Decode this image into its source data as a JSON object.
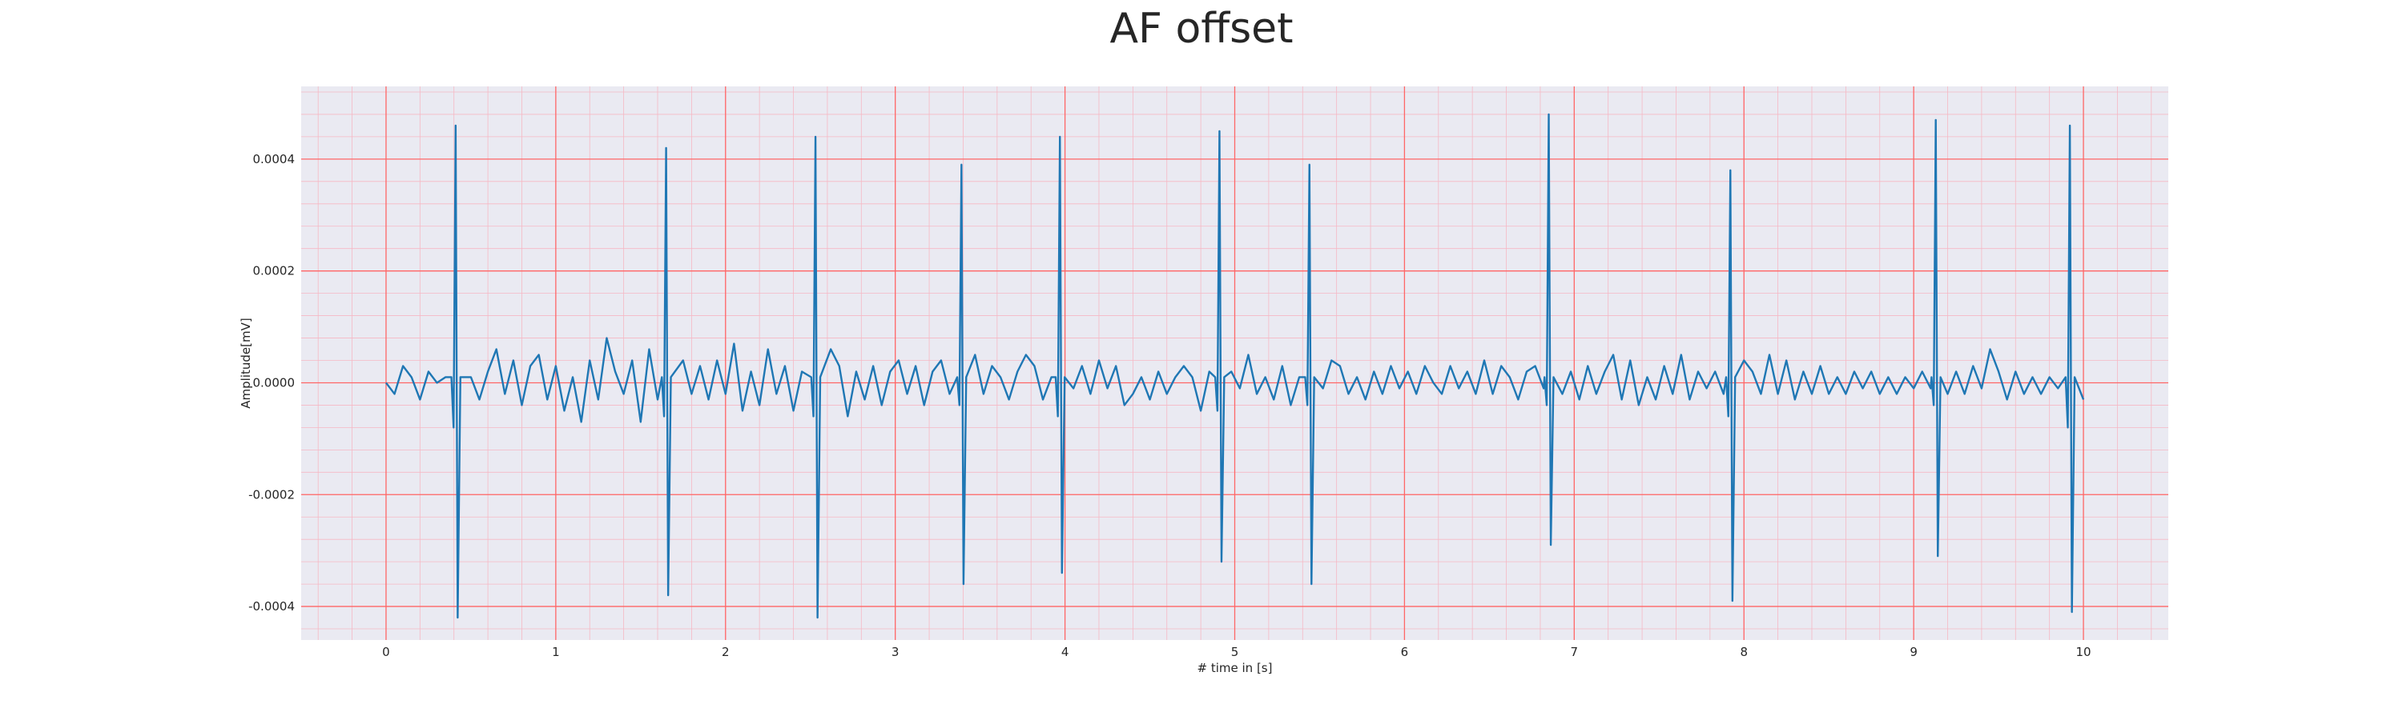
{
  "chart_data": {
    "type": "line",
    "title": "AF offset",
    "xlabel": "# time in [s]",
    "ylabel": "Amplitude[mV]",
    "xlim": [
      -0.5,
      10.5
    ],
    "ylim": [
      -0.00046,
      0.00053
    ],
    "x_ticks": [
      0,
      1,
      2,
      3,
      4,
      5,
      6,
      7,
      8,
      9,
      10
    ],
    "x_tick_labels": [
      "0",
      "1",
      "2",
      "3",
      "4",
      "5",
      "6",
      "7",
      "8",
      "9",
      "10"
    ],
    "y_ticks": [
      -0.0004,
      -0.0002,
      0.0,
      0.0002,
      0.0004
    ],
    "y_tick_labels": [
      "-0.0004",
      "-0.0002",
      "0.0000",
      "0.0002",
      "0.0004"
    ],
    "grid": "major red, minor pink",
    "colors": {
      "background": "#eaeaf2",
      "major_grid": "#ff6666",
      "minor_grid": "#f6b8c4",
      "line": "#1f77b4"
    },
    "series": [
      {
        "qrs_complexes": [
          {
            "t": 0.41,
            "peak": 0.00046,
            "trough": -0.00042,
            "q": -8e-05
          },
          {
            "t": 1.65,
            "peak": 0.00042,
            "trough": -0.00038,
            "q": -6e-05
          },
          {
            "t": 2.53,
            "peak": 0.00044,
            "trough": -0.00042,
            "q": -6e-05
          },
          {
            "t": 3.39,
            "peak": 0.00039,
            "trough": -0.00036,
            "q": -4e-05
          },
          {
            "t": 3.97,
            "peak": 0.00044,
            "trough": -0.00034,
            "q": -6e-05
          },
          {
            "t": 4.91,
            "peak": 0.00045,
            "trough": -0.00032,
            "q": -5e-05
          },
          {
            "t": 5.44,
            "peak": 0.00039,
            "trough": -0.00036,
            "q": -4e-05
          },
          {
            "t": 6.85,
            "peak": 0.00048,
            "trough": -0.00029,
            "q": -4e-05
          },
          {
            "t": 7.92,
            "peak": 0.00038,
            "trough": -0.00039,
            "q": -6e-05
          },
          {
            "t": 9.13,
            "peak": 0.00047,
            "trough": -0.00031,
            "q": -4e-05
          },
          {
            "t": 9.92,
            "peak": 0.00046,
            "trough": -0.00041,
            "q": -8e-05
          }
        ],
        "baseline_fibrillation": [
          [
            0.0,
            0.0
          ],
          [
            0.05,
            -2e-05
          ],
          [
            0.1,
            3e-05
          ],
          [
            0.15,
            1e-05
          ],
          [
            0.2,
            -3e-05
          ],
          [
            0.25,
            2e-05
          ],
          [
            0.3,
            0.0
          ],
          [
            0.35,
            1e-05
          ],
          [
            0.5,
            1e-05
          ],
          [
            0.55,
            -3e-05
          ],
          [
            0.6,
            2e-05
          ],
          [
            0.65,
            6e-05
          ],
          [
            0.7,
            -2e-05
          ],
          [
            0.75,
            4e-05
          ],
          [
            0.8,
            -4e-05
          ],
          [
            0.85,
            3e-05
          ],
          [
            0.9,
            5e-05
          ],
          [
            0.95,
            -3e-05
          ],
          [
            1.0,
            3e-05
          ],
          [
            1.05,
            -5e-05
          ],
          [
            1.1,
            1e-05
          ],
          [
            1.15,
            -7e-05
          ],
          [
            1.2,
            4e-05
          ],
          [
            1.25,
            -3e-05
          ],
          [
            1.3,
            8e-05
          ],
          [
            1.35,
            2e-05
          ],
          [
            1.4,
            -2e-05
          ],
          [
            1.45,
            4e-05
          ],
          [
            1.5,
            -7e-05
          ],
          [
            1.55,
            6e-05
          ],
          [
            1.6,
            -3e-05
          ],
          [
            1.75,
            4e-05
          ],
          [
            1.8,
            -2e-05
          ],
          [
            1.85,
            3e-05
          ],
          [
            1.9,
            -3e-05
          ],
          [
            1.95,
            4e-05
          ],
          [
            2.0,
            -2e-05
          ],
          [
            2.05,
            7e-05
          ],
          [
            2.1,
            -5e-05
          ],
          [
            2.15,
            2e-05
          ],
          [
            2.2,
            -4e-05
          ],
          [
            2.25,
            6e-05
          ],
          [
            2.3,
            -2e-05
          ],
          [
            2.35,
            3e-05
          ],
          [
            2.4,
            -5e-05
          ],
          [
            2.45,
            2e-05
          ],
          [
            2.62,
            6e-05
          ],
          [
            2.67,
            3e-05
          ],
          [
            2.72,
            -6e-05
          ],
          [
            2.77,
            2e-05
          ],
          [
            2.82,
            -3e-05
          ],
          [
            2.87,
            3e-05
          ],
          [
            2.92,
            -4e-05
          ],
          [
            2.97,
            2e-05
          ],
          [
            3.02,
            4e-05
          ],
          [
            3.07,
            -2e-05
          ],
          [
            3.12,
            3e-05
          ],
          [
            3.17,
            -4e-05
          ],
          [
            3.22,
            2e-05
          ],
          [
            3.27,
            4e-05
          ],
          [
            3.32,
            -2e-05
          ],
          [
            3.47,
            5e-05
          ],
          [
            3.52,
            -2e-05
          ],
          [
            3.57,
            3e-05
          ],
          [
            3.62,
            1e-05
          ],
          [
            3.67,
            -3e-05
          ],
          [
            3.72,
            2e-05
          ],
          [
            3.77,
            5e-05
          ],
          [
            3.82,
            3e-05
          ],
          [
            3.87,
            -3e-05
          ],
          [
            3.92,
            1e-05
          ],
          [
            4.05,
            -1e-05
          ],
          [
            4.1,
            3e-05
          ],
          [
            4.15,
            -2e-05
          ],
          [
            4.2,
            4e-05
          ],
          [
            4.25,
            -1e-05
          ],
          [
            4.3,
            3e-05
          ],
          [
            4.35,
            -4e-05
          ],
          [
            4.4,
            -2e-05
          ],
          [
            4.45,
            1e-05
          ],
          [
            4.5,
            -3e-05
          ],
          [
            4.55,
            2e-05
          ],
          [
            4.6,
            -2e-05
          ],
          [
            4.65,
            1e-05
          ],
          [
            4.7,
            3e-05
          ],
          [
            4.75,
            1e-05
          ],
          [
            4.8,
            -5e-05
          ],
          [
            4.85,
            2e-05
          ],
          [
            4.98,
            2e-05
          ],
          [
            5.03,
            -1e-05
          ],
          [
            5.08,
            5e-05
          ],
          [
            5.13,
            -2e-05
          ],
          [
            5.18,
            1e-05
          ],
          [
            5.23,
            -3e-05
          ],
          [
            5.28,
            3e-05
          ],
          [
            5.33,
            -4e-05
          ],
          [
            5.38,
            1e-05
          ],
          [
            5.52,
            -1e-05
          ],
          [
            5.57,
            4e-05
          ],
          [
            5.62,
            3e-05
          ],
          [
            5.67,
            -2e-05
          ],
          [
            5.72,
            1e-05
          ],
          [
            5.77,
            -3e-05
          ],
          [
            5.82,
            2e-05
          ],
          [
            5.87,
            -2e-05
          ],
          [
            5.92,
            3e-05
          ],
          [
            5.97,
            -1e-05
          ],
          [
            6.02,
            2e-05
          ],
          [
            6.07,
            -2e-05
          ],
          [
            6.12,
            3e-05
          ],
          [
            6.17,
            0.0
          ],
          [
            6.22,
            -2e-05
          ],
          [
            6.27,
            3e-05
          ],
          [
            6.32,
            -1e-05
          ],
          [
            6.37,
            2e-05
          ],
          [
            6.42,
            -2e-05
          ],
          [
            6.47,
            4e-05
          ],
          [
            6.52,
            -2e-05
          ],
          [
            6.57,
            3e-05
          ],
          [
            6.62,
            1e-05
          ],
          [
            6.67,
            -3e-05
          ],
          [
            6.72,
            2e-05
          ],
          [
            6.77,
            3e-05
          ],
          [
            6.82,
            -1e-05
          ],
          [
            6.93,
            -2e-05
          ],
          [
            6.98,
            2e-05
          ],
          [
            7.03,
            -3e-05
          ],
          [
            7.08,
            3e-05
          ],
          [
            7.13,
            -2e-05
          ],
          [
            7.18,
            2e-05
          ],
          [
            7.23,
            5e-05
          ],
          [
            7.28,
            -3e-05
          ],
          [
            7.33,
            4e-05
          ],
          [
            7.38,
            -4e-05
          ],
          [
            7.43,
            1e-05
          ],
          [
            7.48,
            -3e-05
          ],
          [
            7.53,
            3e-05
          ],
          [
            7.58,
            -2e-05
          ],
          [
            7.63,
            5e-05
          ],
          [
            7.68,
            -3e-05
          ],
          [
            7.73,
            2e-05
          ],
          [
            7.78,
            -1e-05
          ],
          [
            7.83,
            2e-05
          ],
          [
            7.88,
            -2e-05
          ],
          [
            8.0,
            4e-05
          ],
          [
            8.05,
            2e-05
          ],
          [
            8.1,
            -2e-05
          ],
          [
            8.15,
            5e-05
          ],
          [
            8.2,
            -2e-05
          ],
          [
            8.25,
            4e-05
          ],
          [
            8.3,
            -3e-05
          ],
          [
            8.35,
            2e-05
          ],
          [
            8.4,
            -2e-05
          ],
          [
            8.45,
            3e-05
          ],
          [
            8.5,
            -2e-05
          ],
          [
            8.55,
            1e-05
          ],
          [
            8.6,
            -2e-05
          ],
          [
            8.65,
            2e-05
          ],
          [
            8.7,
            -1e-05
          ],
          [
            8.75,
            2e-05
          ],
          [
            8.8,
            -2e-05
          ],
          [
            8.85,
            1e-05
          ],
          [
            8.9,
            -2e-05
          ],
          [
            8.95,
            1e-05
          ],
          [
            9.0,
            -1e-05
          ],
          [
            9.05,
            2e-05
          ],
          [
            9.1,
            -1e-05
          ],
          [
            9.2,
            -2e-05
          ],
          [
            9.25,
            2e-05
          ],
          [
            9.3,
            -2e-05
          ],
          [
            9.35,
            3e-05
          ],
          [
            9.4,
            -1e-05
          ],
          [
            9.45,
            6e-05
          ],
          [
            9.5,
            2e-05
          ],
          [
            9.55,
            -3e-05
          ],
          [
            9.6,
            2e-05
          ],
          [
            9.65,
            -2e-05
          ],
          [
            9.7,
            1e-05
          ],
          [
            9.75,
            -2e-05
          ],
          [
            9.8,
            1e-05
          ],
          [
            9.85,
            -1e-05
          ],
          [
            10.0,
            -3e-05
          ]
        ]
      }
    ]
  }
}
